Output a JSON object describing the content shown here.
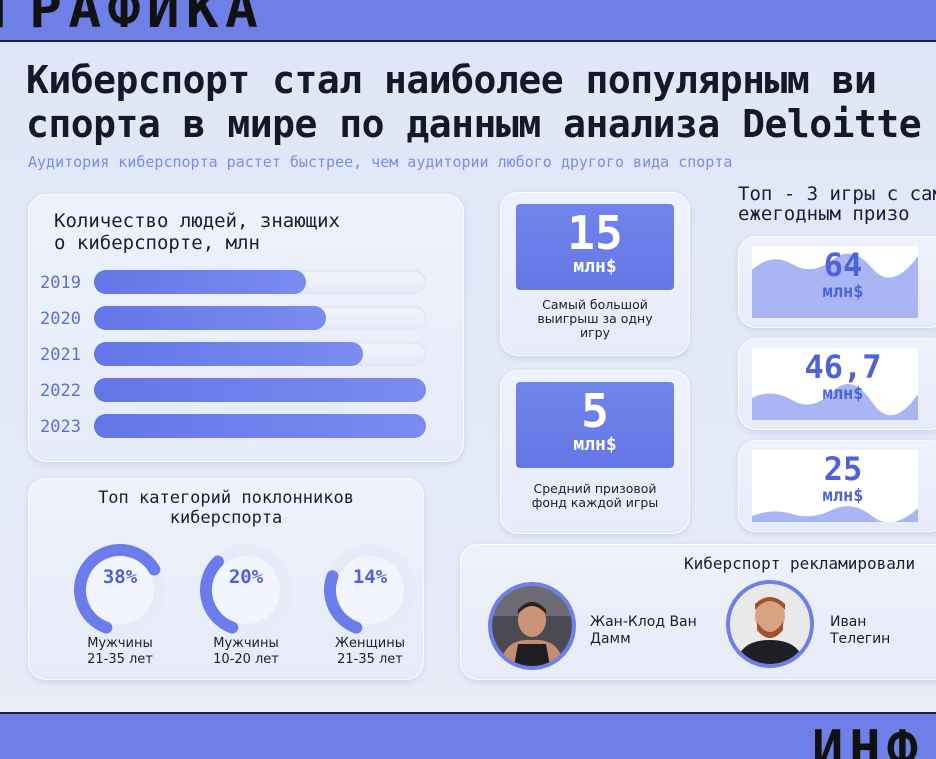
{
  "top_band": {
    "text": "ГРАФИКА"
  },
  "bottom_band": {
    "text": "ИНФ"
  },
  "headline": {
    "line1": "Киберспорт стал наиболее популярным ви",
    "line2": "спорта в мире по данным анализа Deloitte"
  },
  "subheadline": "Аудитория киберспорта растет быстрее, чем аудитории любого другого вида спорта",
  "audience_chart": {
    "title_line1": "Количество людей, знающих",
    "title_line2": "о киберспорте, млн"
  },
  "fans": {
    "title_line1": "Топ категорий поклонников",
    "title_line2": "киберспорта",
    "items": [
      {
        "pct": "38%",
        "label_line1": "Мужчины",
        "label_line2": "21-35 лет",
        "value": 38
      },
      {
        "pct": "20%",
        "label_line1": "Мужчины",
        "label_line2": "10-20 лет",
        "value": 20
      },
      {
        "pct": "14%",
        "label_line1": "Женщины",
        "label_line2": "21-35 лет",
        "value": 14
      }
    ]
  },
  "stats": [
    {
      "big": "15",
      "unit": "млн$",
      "desc_line1": "Самый большой",
      "desc_line2": "выигрыш за одну",
      "desc_line3": "игру"
    },
    {
      "big": "5",
      "unit": "млн$",
      "desc_line1": "Средний призовой",
      "desc_line2": "фонд каждой игры",
      "desc_line3": ""
    }
  ],
  "games": {
    "title_line1": "Топ - 3 игры с сам",
    "title_line2": "ежегодным призо",
    "items": [
      {
        "value": "64",
        "unit": "млн$"
      },
      {
        "value": "46,7",
        "unit": "млн$"
      },
      {
        "value": "25",
        "unit": "млн$"
      }
    ]
  },
  "promo": {
    "title": "Киберспорт рекламировали",
    "people": [
      {
        "name_line1": "Жан-Клод Ван",
        "name_line2": "Дамм"
      },
      {
        "name_line1": "Иван",
        "name_line2": "Телегин"
      }
    ]
  },
  "colors": {
    "accent": "#6f7fe8",
    "bar": "#6376e6",
    "track": "#e4e9f7",
    "text": "#16182a"
  },
  "chart_data": {
    "type": "bar",
    "orientation": "horizontal",
    "title": "Количество людей, знающих о киберспорте, млн",
    "categories": [
      "2019",
      "2020",
      "2021",
      "2022",
      "2023"
    ],
    "values": [
      0.64,
      0.7,
      0.81,
      1.0,
      1.0
    ],
    "value_note": "relative bar length (no numeric labels shown)",
    "grid": false
  }
}
